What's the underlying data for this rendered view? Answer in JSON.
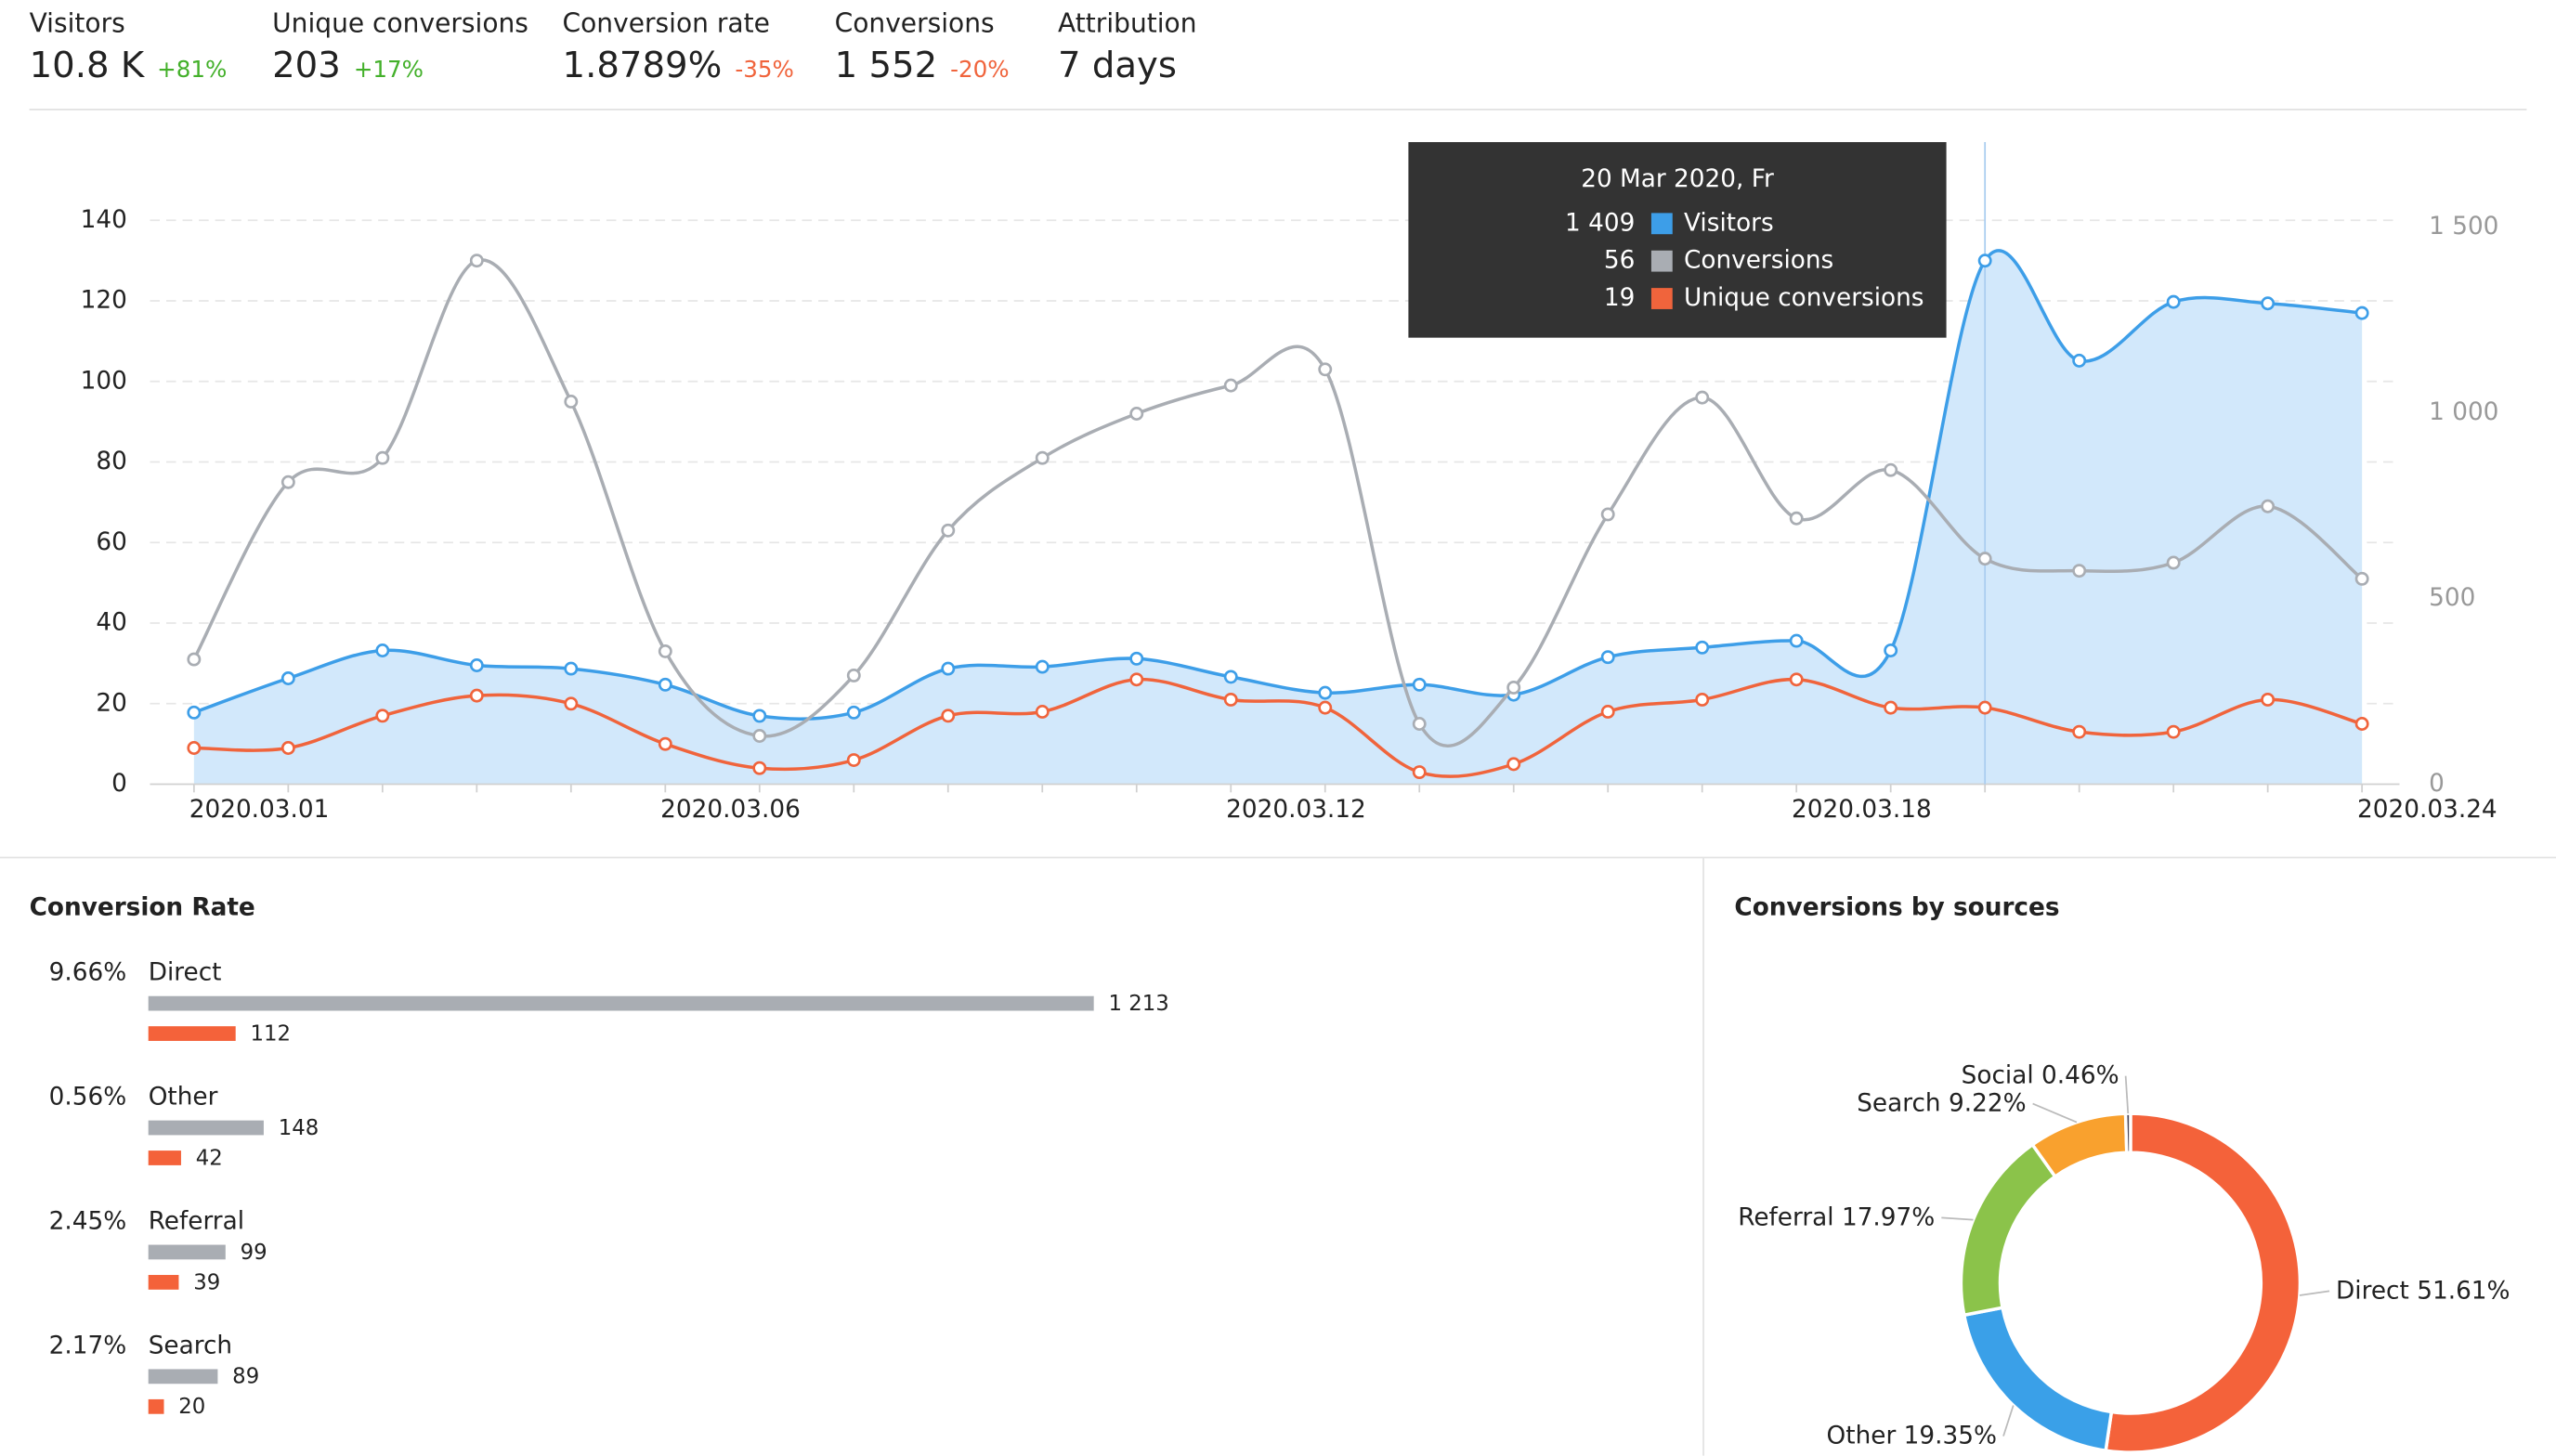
{
  "kpis": [
    {
      "label": "Visitors",
      "value": "10.8 K",
      "change": "+81%",
      "change_color": "#43b02a"
    },
    {
      "label": "Unique conversions",
      "value": "203",
      "change": "+17%",
      "change_color": "#43b02a"
    },
    {
      "label": "Conversion rate",
      "value": "1.8789%",
      "change": "-35%",
      "change_color": "#f0643c"
    },
    {
      "label": "Conversions",
      "value": "1 552",
      "change": "-20%",
      "change_color": "#f0643c"
    },
    {
      "label": "Attribution",
      "value": "7 days"
    }
  ],
  "chart_data": [
    {
      "type": "line",
      "categories": [
        "2020.03.01",
        null,
        null,
        null,
        null,
        "2020.03.06",
        null,
        null,
        null,
        null,
        null,
        "2020.03.12",
        null,
        null,
        null,
        null,
        null,
        "2020.03.18",
        null,
        null,
        null,
        null,
        null,
        "2020.03.24"
      ],
      "series": [
        {
          "name": "Visitors",
          "color": "#3d9ee8",
          "area_color": "#d2e8fb",
          "axis": "y2",
          "values": [
            193,
            285,
            360,
            320,
            311,
            268,
            184,
            193,
            311,
            316,
            338,
            289,
            246,
            268,
            241,
            342,
            368,
            386,
            360,
            1409,
            1140,
            1298,
            1294,
            1268
          ]
        },
        {
          "name": "Conversions",
          "color": "#a9adb3",
          "values": [
            31,
            75,
            81,
            130,
            95,
            33,
            12,
            27,
            63,
            81,
            92,
            99,
            103,
            15,
            24,
            67,
            96,
            66,
            78,
            56,
            53,
            55,
            69,
            51
          ]
        },
        {
          "name": "Unique conversions",
          "color": "#f0643c",
          "values": [
            9,
            9,
            17,
            22,
            20,
            10,
            4,
            6,
            17,
            18,
            26,
            21,
            19,
            3,
            5,
            18,
            21,
            26,
            19,
            19,
            13,
            13,
            21,
            15
          ]
        }
      ],
      "ylim": [
        0,
        140
      ],
      "yticks": [
        0,
        20,
        40,
        60,
        80,
        100,
        120,
        140
      ],
      "y2lim": [
        0,
        1500
      ],
      "y2ticks": [
        0,
        500,
        {
          "value": 1000,
          "label": "1 000"
        },
        {
          "value": 1500,
          "label": "1 500"
        }
      ],
      "grid": true,
      "tooltip": {
        "title": "20 Mar 2020, Fr",
        "values": [
          "1 409",
          "56",
          "19"
        ]
      }
    },
    {
      "type": "hbar",
      "title": "Conversion Rate",
      "categories": [
        "Direct",
        "Other",
        "Referral",
        "Search"
      ],
      "rates": [
        "9.66%",
        "0.56%",
        "2.45%",
        "2.17%"
      ],
      "series": [
        {
          "color": "#a9adb3",
          "values": [
            1213,
            148,
            99,
            89
          ],
          "value_labels": [
            "1 213",
            "148",
            "99",
            "89"
          ]
        },
        {
          "color": "#f4623a",
          "values": [
            112,
            42,
            39,
            20
          ]
        }
      ]
    },
    {
      "type": "donut",
      "title": "Conversions by sources",
      "categories": [
        "Direct",
        "Other",
        "Referral",
        "Search",
        "Social"
      ],
      "values": [
        51.61,
        19.35,
        17.97,
        9.22,
        0.46
      ],
      "value_labels": [
        "51.61%",
        "19.35%",
        "17.97%",
        "9.22%",
        "0.46%"
      ],
      "colors": [
        "#f4623a",
        "#3aa0e8",
        "#8bc34a",
        "#f9a12e",
        "#4a4658"
      ]
    }
  ]
}
